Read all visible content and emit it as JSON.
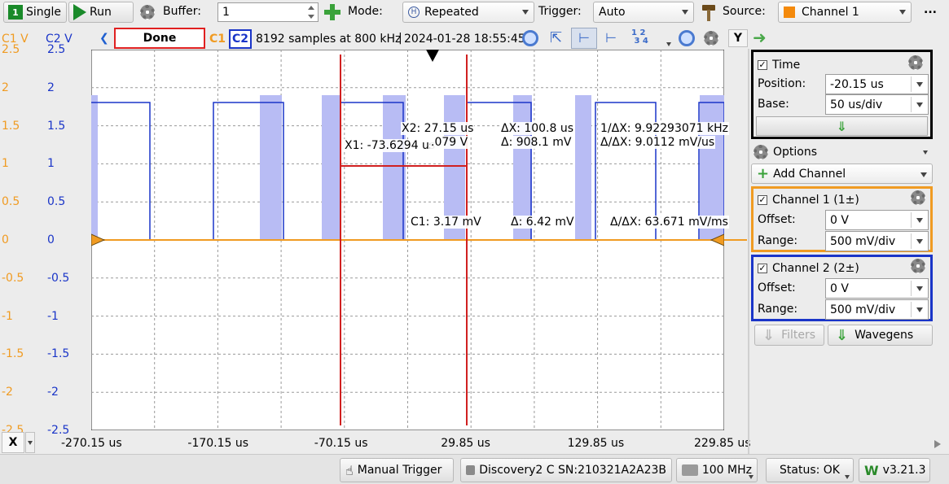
{
  "toolbar": {
    "single_label": "Single",
    "run_label": "Run",
    "buffer_label": "Buffer:",
    "buffer_value": "1",
    "mode_label": "Mode:",
    "mode_value": "Repeated",
    "trigger_label": "Trigger:",
    "trigger_value": "Auto",
    "source_label": "Source:",
    "source_value": "Channel 1",
    "more_label": "..."
  },
  "scope": {
    "c1_header": "C1 V",
    "c2_header": "C2 V",
    "status": "Done",
    "c1_tag": "C1",
    "c2_tag": "C2",
    "acq_info": "8192 samples at 800 kHz",
    "timestamp": "2024-01-28 18:55:45",
    "y_button": "Y",
    "x_button": "X",
    "y_ticks": [
      "2.5",
      "2",
      "1.5",
      "1",
      "0.5",
      "0",
      "-0.5",
      "-1",
      "-1.5",
      "-2",
      "-2.5"
    ],
    "x_ticks": [
      "-270.15 us",
      "-170.15 us",
      "-70.15 us",
      "29.85 us",
      "129.85 us",
      "229.85 us"
    ]
  },
  "measurements": {
    "x1": "X1: -73.6294 us",
    "x2": "X2: 27.15 us",
    "v2": ".079 V",
    "dx": "ΔX: 100.8 us",
    "dv": "Δ: 908.1 mV",
    "freq": "1/ΔX: 9.92293071 kHz",
    "slope": "Δ/ΔX: 9.0112 mV/us",
    "c1": "C1: 3.17 mV",
    "c1_d": "Δ: 6.42 mV",
    "c1_slope": "Δ/ΔX: 63.671 mV/ms"
  },
  "time_panel": {
    "title": "Time",
    "position_label": "Position:",
    "position_value": "-20.15 us",
    "base_label": "Base:",
    "base_value": "50 us/div"
  },
  "options_label": "Options",
  "add_channel_label": "Add Channel",
  "channel1": {
    "title": "Channel 1 (1±)",
    "offset_label": "Offset:",
    "offset_value": "0 V",
    "range_label": "Range:",
    "range_value": "500 mV/div",
    "color": "#f09b22"
  },
  "channel2": {
    "title": "Channel 2 (2±)",
    "offset_label": "Offset:",
    "offset_value": "0 V",
    "range_label": "Range:",
    "range_value": "500 mV/div",
    "color": "#1a35c8"
  },
  "filters_label": "Filters",
  "wavegens_label": "Wavegens",
  "statusbar": {
    "manual_trigger": "Manual Trigger",
    "device": "Discovery2 C SN:210321A2A23B",
    "clock": "100 MHz",
    "status": "Status: OK",
    "version": "v3.21.3"
  },
  "icons": [
    "play-icon",
    "gear-icon",
    "plus-icon",
    "hammer-icon",
    "zoom-icon",
    "cursor-icon",
    "arrow-down-icon",
    "chevron-left-icon",
    "trigger-marker-icon"
  ]
}
